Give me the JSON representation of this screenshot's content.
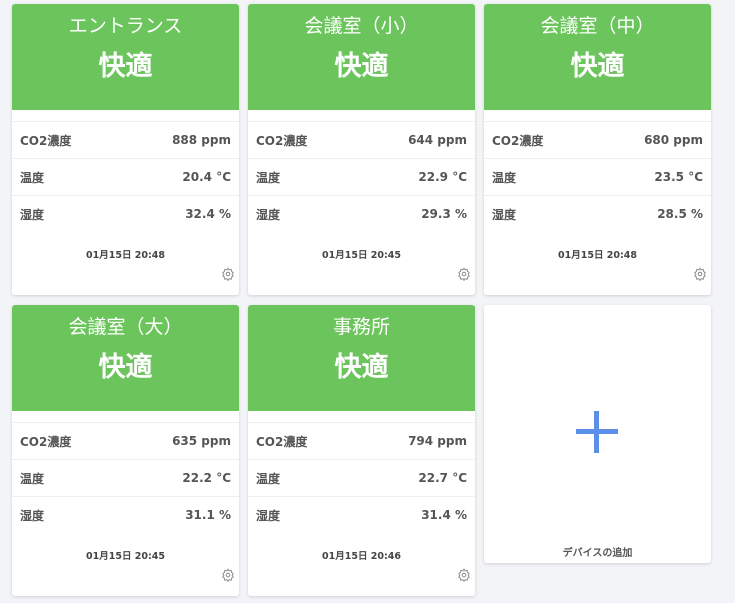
{
  "colors": {
    "comfortable": "#6cc55c",
    "accent": "#5b8fe8"
  },
  "devices": [
    {
      "name": "エントランス",
      "status": "快適",
      "metrics": [
        {
          "label": "CO2濃度",
          "value": "888 ppm"
        },
        {
          "label": "温度",
          "value": "20.4 °C"
        },
        {
          "label": "湿度",
          "value": "32.4 %"
        }
      ],
      "timestamp": "01月15日 20:48",
      "icon": "gear-icon"
    },
    {
      "name": "会議室（小）",
      "status": "快適",
      "metrics": [
        {
          "label": "CO2濃度",
          "value": "644 ppm"
        },
        {
          "label": "温度",
          "value": "22.9 °C"
        },
        {
          "label": "湿度",
          "value": "29.3 %"
        }
      ],
      "timestamp": "01月15日 20:45",
      "icon": "gear-icon"
    },
    {
      "name": "会議室（中）",
      "status": "快適",
      "metrics": [
        {
          "label": "CO2濃度",
          "value": "680 ppm"
        },
        {
          "label": "温度",
          "value": "23.5 °C"
        },
        {
          "label": "湿度",
          "value": "28.5 %"
        }
      ],
      "timestamp": "01月15日 20:48",
      "icon": "gear-icon"
    },
    {
      "name": "会議室（大）",
      "status": "快適",
      "metrics": [
        {
          "label": "CO2濃度",
          "value": "635 ppm"
        },
        {
          "label": "温度",
          "value": "22.2 °C"
        },
        {
          "label": "湿度",
          "value": "31.1 %"
        }
      ],
      "timestamp": "01月15日 20:45",
      "icon": "gear-icon"
    },
    {
      "name": "事務所",
      "status": "快適",
      "metrics": [
        {
          "label": "CO2濃度",
          "value": "794 ppm"
        },
        {
          "label": "温度",
          "value": "22.7 °C"
        },
        {
          "label": "湿度",
          "value": "31.4 %"
        }
      ],
      "timestamp": "01月15日 20:46",
      "icon": "gear-icon"
    }
  ],
  "add_device": {
    "label": "デバイスの追加",
    "icon": "plus-icon"
  }
}
